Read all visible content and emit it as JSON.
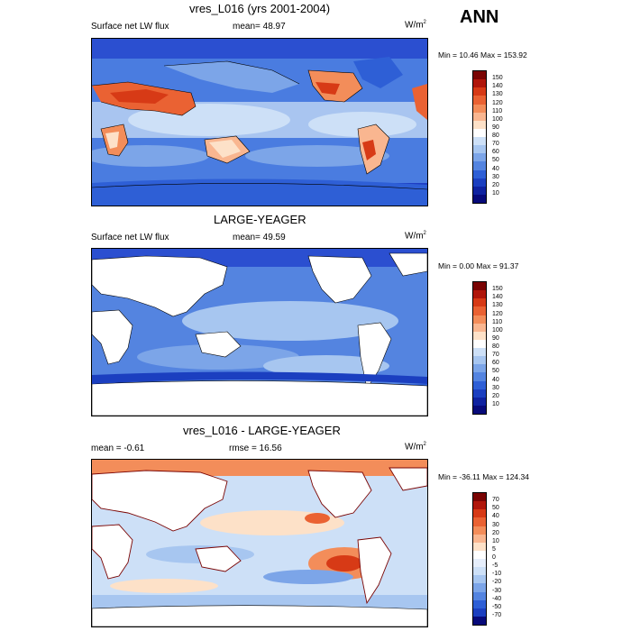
{
  "season": "ANN",
  "panels": [
    {
      "title": "vres_L016 (yrs 2001-2004)",
      "left_label": "Surface net LW flux",
      "mid_label": "mean=  48.97",
      "units": "W/m",
      "units_sup": "2",
      "minmax": "Min =  10.46 Max = 153.92",
      "levels": [
        "150",
        "140",
        "130",
        "120",
        "110",
        "100",
        "90",
        "80",
        "70",
        "60",
        "50",
        "40",
        "30",
        "20",
        "10"
      ],
      "colors": [
        "#7a0403",
        "#b0160b",
        "#d73a16",
        "#ea6233",
        "#f38d5a",
        "#f9b690",
        "#fde1c8",
        "#ffffff",
        "#cde0f7",
        "#a7c6f0",
        "#7ca5e8",
        "#5484e0",
        "#2e5fd6",
        "#1b3fc0",
        "#0f22a0",
        "#070a7a"
      ]
    },
    {
      "title": "LARGE-YEAGER",
      "left_label": "Surface net LW flux",
      "mid_label": "mean=  49.59",
      "units": "W/m",
      "units_sup": "2",
      "minmax": "Min =   0.00 Max =  91.37",
      "levels": [
        "150",
        "140",
        "130",
        "120",
        "110",
        "100",
        "90",
        "80",
        "70",
        "60",
        "50",
        "40",
        "30",
        "20",
        "10"
      ],
      "colors": [
        "#7a0403",
        "#b0160b",
        "#d73a16",
        "#ea6233",
        "#f38d5a",
        "#f9b690",
        "#fde1c8",
        "#ffffff",
        "#cde0f7",
        "#a7c6f0",
        "#7ca5e8",
        "#5484e0",
        "#2e5fd6",
        "#1b3fc0",
        "#0f22a0",
        "#070a7a"
      ]
    },
    {
      "title": "vres_L016 - LARGE-YEAGER",
      "left_label": "mean =  -0.61",
      "mid_label": "rmse =  16.56",
      "units": "W/m",
      "units_sup": "2",
      "minmax": "Min = -36.11 Max = 124.34",
      "levels": [
        "70",
        "50",
        "40",
        "30",
        "20",
        "10",
        "5",
        "0",
        "-5",
        "-10",
        "-20",
        "-30",
        "-40",
        "-50",
        "-70"
      ],
      "colors": [
        "#7a0403",
        "#b0160b",
        "#d73a16",
        "#ea6233",
        "#f38d5a",
        "#f9b690",
        "#fde1c8",
        "#ffffff",
        "#e6eefb",
        "#cde0f7",
        "#a7c6f0",
        "#7ca5e8",
        "#5484e0",
        "#2e5fd6",
        "#1b3fc0",
        "#070a7a"
      ]
    }
  ]
}
